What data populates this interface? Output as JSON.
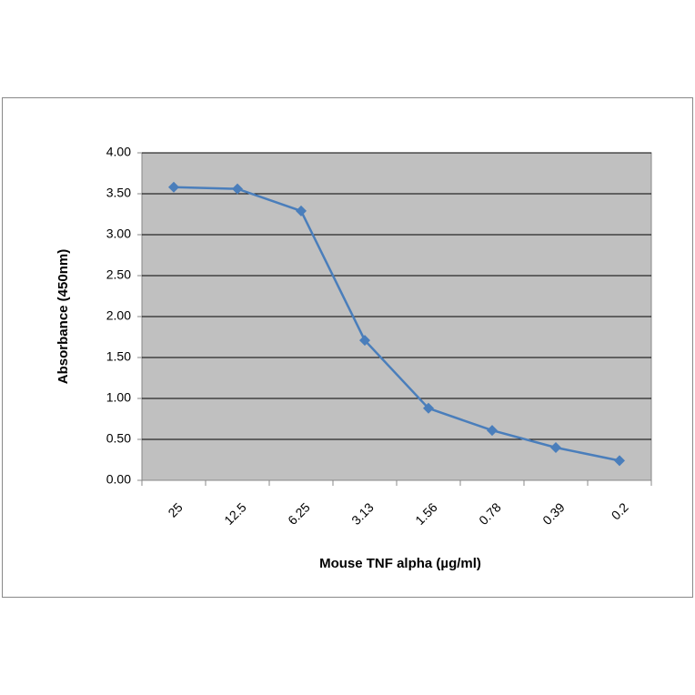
{
  "chart_data": {
    "type": "line",
    "x_label": "Mouse TNF alpha (µg/ml)",
    "y_label": "Absorbance (450nm)",
    "categories": [
      "25",
      "12.5",
      "6.25",
      "3.13",
      "1.56",
      "0.78",
      "0.39",
      "0.2"
    ],
    "series": [
      {
        "name": "Absorbance",
        "color": "#4a7ebb",
        "values": [
          3.58,
          3.56,
          3.29,
          1.71,
          0.88,
          0.61,
          0.4,
          0.24
        ]
      }
    ],
    "ylim": [
      0,
      4
    ],
    "yticks": [
      {
        "value": 0,
        "label": "0.00"
      },
      {
        "value": 0.5,
        "label": "0.50"
      },
      {
        "value": 1,
        "label": "1.00"
      },
      {
        "value": 1.5,
        "label": "1.50"
      },
      {
        "value": 2,
        "label": "2.00"
      },
      {
        "value": 2.5,
        "label": "2.50"
      },
      {
        "value": 3,
        "label": "3.00"
      },
      {
        "value": 3.5,
        "label": "3.50"
      },
      {
        "value": 4,
        "label": "4.00"
      }
    ],
    "grid": true,
    "plot_background": "#c0c0c0"
  }
}
